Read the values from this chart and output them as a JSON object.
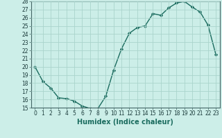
{
  "x": [
    0,
    1,
    2,
    3,
    4,
    5,
    6,
    7,
    8,
    9,
    10,
    11,
    12,
    13,
    14,
    15,
    16,
    17,
    18,
    19,
    20,
    21,
    22,
    23
  ],
  "y": [
    20.0,
    18.2,
    17.4,
    16.2,
    16.1,
    15.8,
    15.2,
    14.9,
    14.9,
    16.4,
    19.6,
    22.2,
    24.1,
    24.8,
    25.0,
    26.5,
    26.3,
    27.2,
    27.8,
    28.0,
    27.3,
    26.7,
    25.1,
    21.5
  ],
  "line_color": "#1a6b5e",
  "marker": "D",
  "markersize": 2.2,
  "linewidth": 1.0,
  "background_color": "#cceee8",
  "grid_color": "#aad4cc",
  "xlabel": "Humidex (Indice chaleur)",
  "ylabel": "",
  "ylim": [
    15,
    28
  ],
  "xlim": [
    -0.5,
    23.5
  ],
  "yticks": [
    15,
    16,
    17,
    18,
    19,
    20,
    21,
    22,
    23,
    24,
    25,
    26,
    27,
    28
  ],
  "xticks": [
    0,
    1,
    2,
    3,
    4,
    5,
    6,
    7,
    8,
    9,
    10,
    11,
    12,
    13,
    14,
    15,
    16,
    17,
    18,
    19,
    20,
    21,
    22,
    23
  ],
  "tick_label_fontsize": 5.5,
  "xlabel_fontsize": 7.0
}
